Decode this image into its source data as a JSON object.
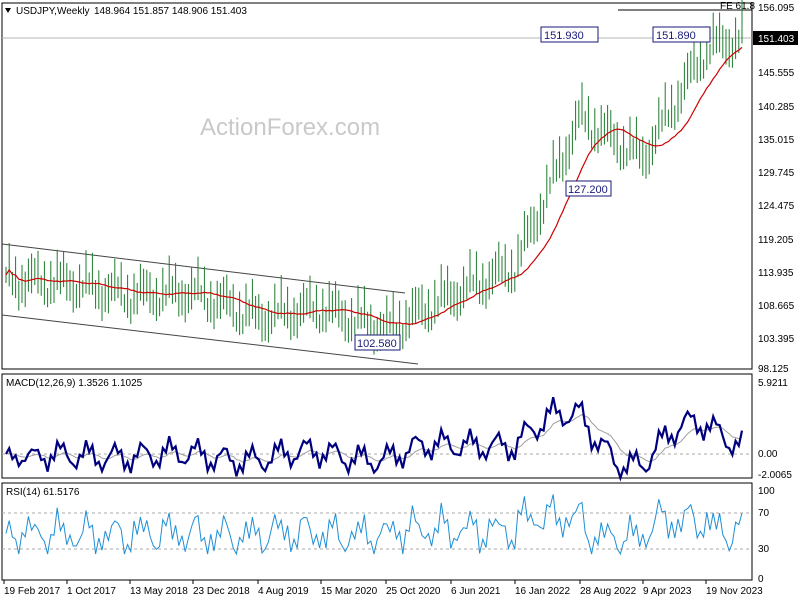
{
  "header": {
    "symbol": "USDJPY,Weekly",
    "ohlc": "148.964 151.857 148.906 151.403"
  },
  "watermark": "ActionForex.com",
  "colors": {
    "price_bar": "#1e7c2c",
    "ma_line": "#cc0000",
    "channel": "#444444",
    "macd_line": "#00007f",
    "signal_line": "#a0a0a0",
    "rsi_line": "#1e8fd6",
    "label_border": "#1a1a7a",
    "grid": "#cfcfcf"
  },
  "price_axis": {
    "ticks": [
      "156.095",
      "151.403",
      "145.555",
      "140.285",
      "135.015",
      "129.745",
      "124.475",
      "119.205",
      "113.935",
      "108.665",
      "103.395",
      "98.125"
    ],
    "last_price": "151.403",
    "fe_label": "FE 61.8"
  },
  "annotations": [
    {
      "text": "151.930"
    },
    {
      "text": "151.890"
    },
    {
      "text": "127.200"
    },
    {
      "text": "102.580"
    }
  ],
  "macd": {
    "label": "MACD(12,26,9) 1.3526 1.1025",
    "ticks": [
      "5.9211",
      "0.00",
      "-2.0065"
    ]
  },
  "rsi": {
    "label": "RSI(14) 61.5176",
    "ticks": [
      "100",
      "70",
      "30",
      "0"
    ]
  },
  "time_axis": [
    "19 Feb 2017",
    "1 Oct 2017",
    "13 May 2018",
    "23 Dec 2018",
    "4 Aug 2019",
    "15 Mar 2020",
    "25 Oct 2020",
    "6 Jun 2021",
    "16 Jan 2022",
    "28 Aug 2022",
    "9 Apr 2023",
    "19 Nov 2023"
  ],
  "chart_data": {
    "type": "line",
    "title": "USDJPY,Weekly",
    "x_ticks": [
      "19 Feb 2017",
      "1 Oct 2017",
      "13 May 2018",
      "23 Dec 2018",
      "4 Aug 2019",
      "15 Mar 2020",
      "25 Oct 2020",
      "6 Jun 2021",
      "16 Jan 2022",
      "28 Aug 2022",
      "9 Apr 2023",
      "19 Nov 2023"
    ],
    "x": [
      "19 Feb 2017",
      "1 Oct 2017",
      "13 May 2018",
      "23 Dec 2018",
      "4 Aug 2019",
      "15 Mar 2020",
      "25 Oct 2020",
      "6 Jun 2021",
      "16 Jan 2022",
      "28 Aug 2022",
      "9 Apr 2023",
      "19 Nov 2023"
    ],
    "series": [
      {
        "name": "USDJPY",
        "values": [
          112.5,
          112.0,
          110.0,
          110.5,
          106.5,
          108.0,
          104.5,
          110.0,
          114.5,
          138.5,
          132.0,
          149.5
        ]
      }
    ],
    "ylim": [
      98.125,
      156.095
    ],
    "key_levels": [
      151.93,
      151.89,
      127.2,
      102.58,
      151.403
    ],
    "grid": false
  }
}
